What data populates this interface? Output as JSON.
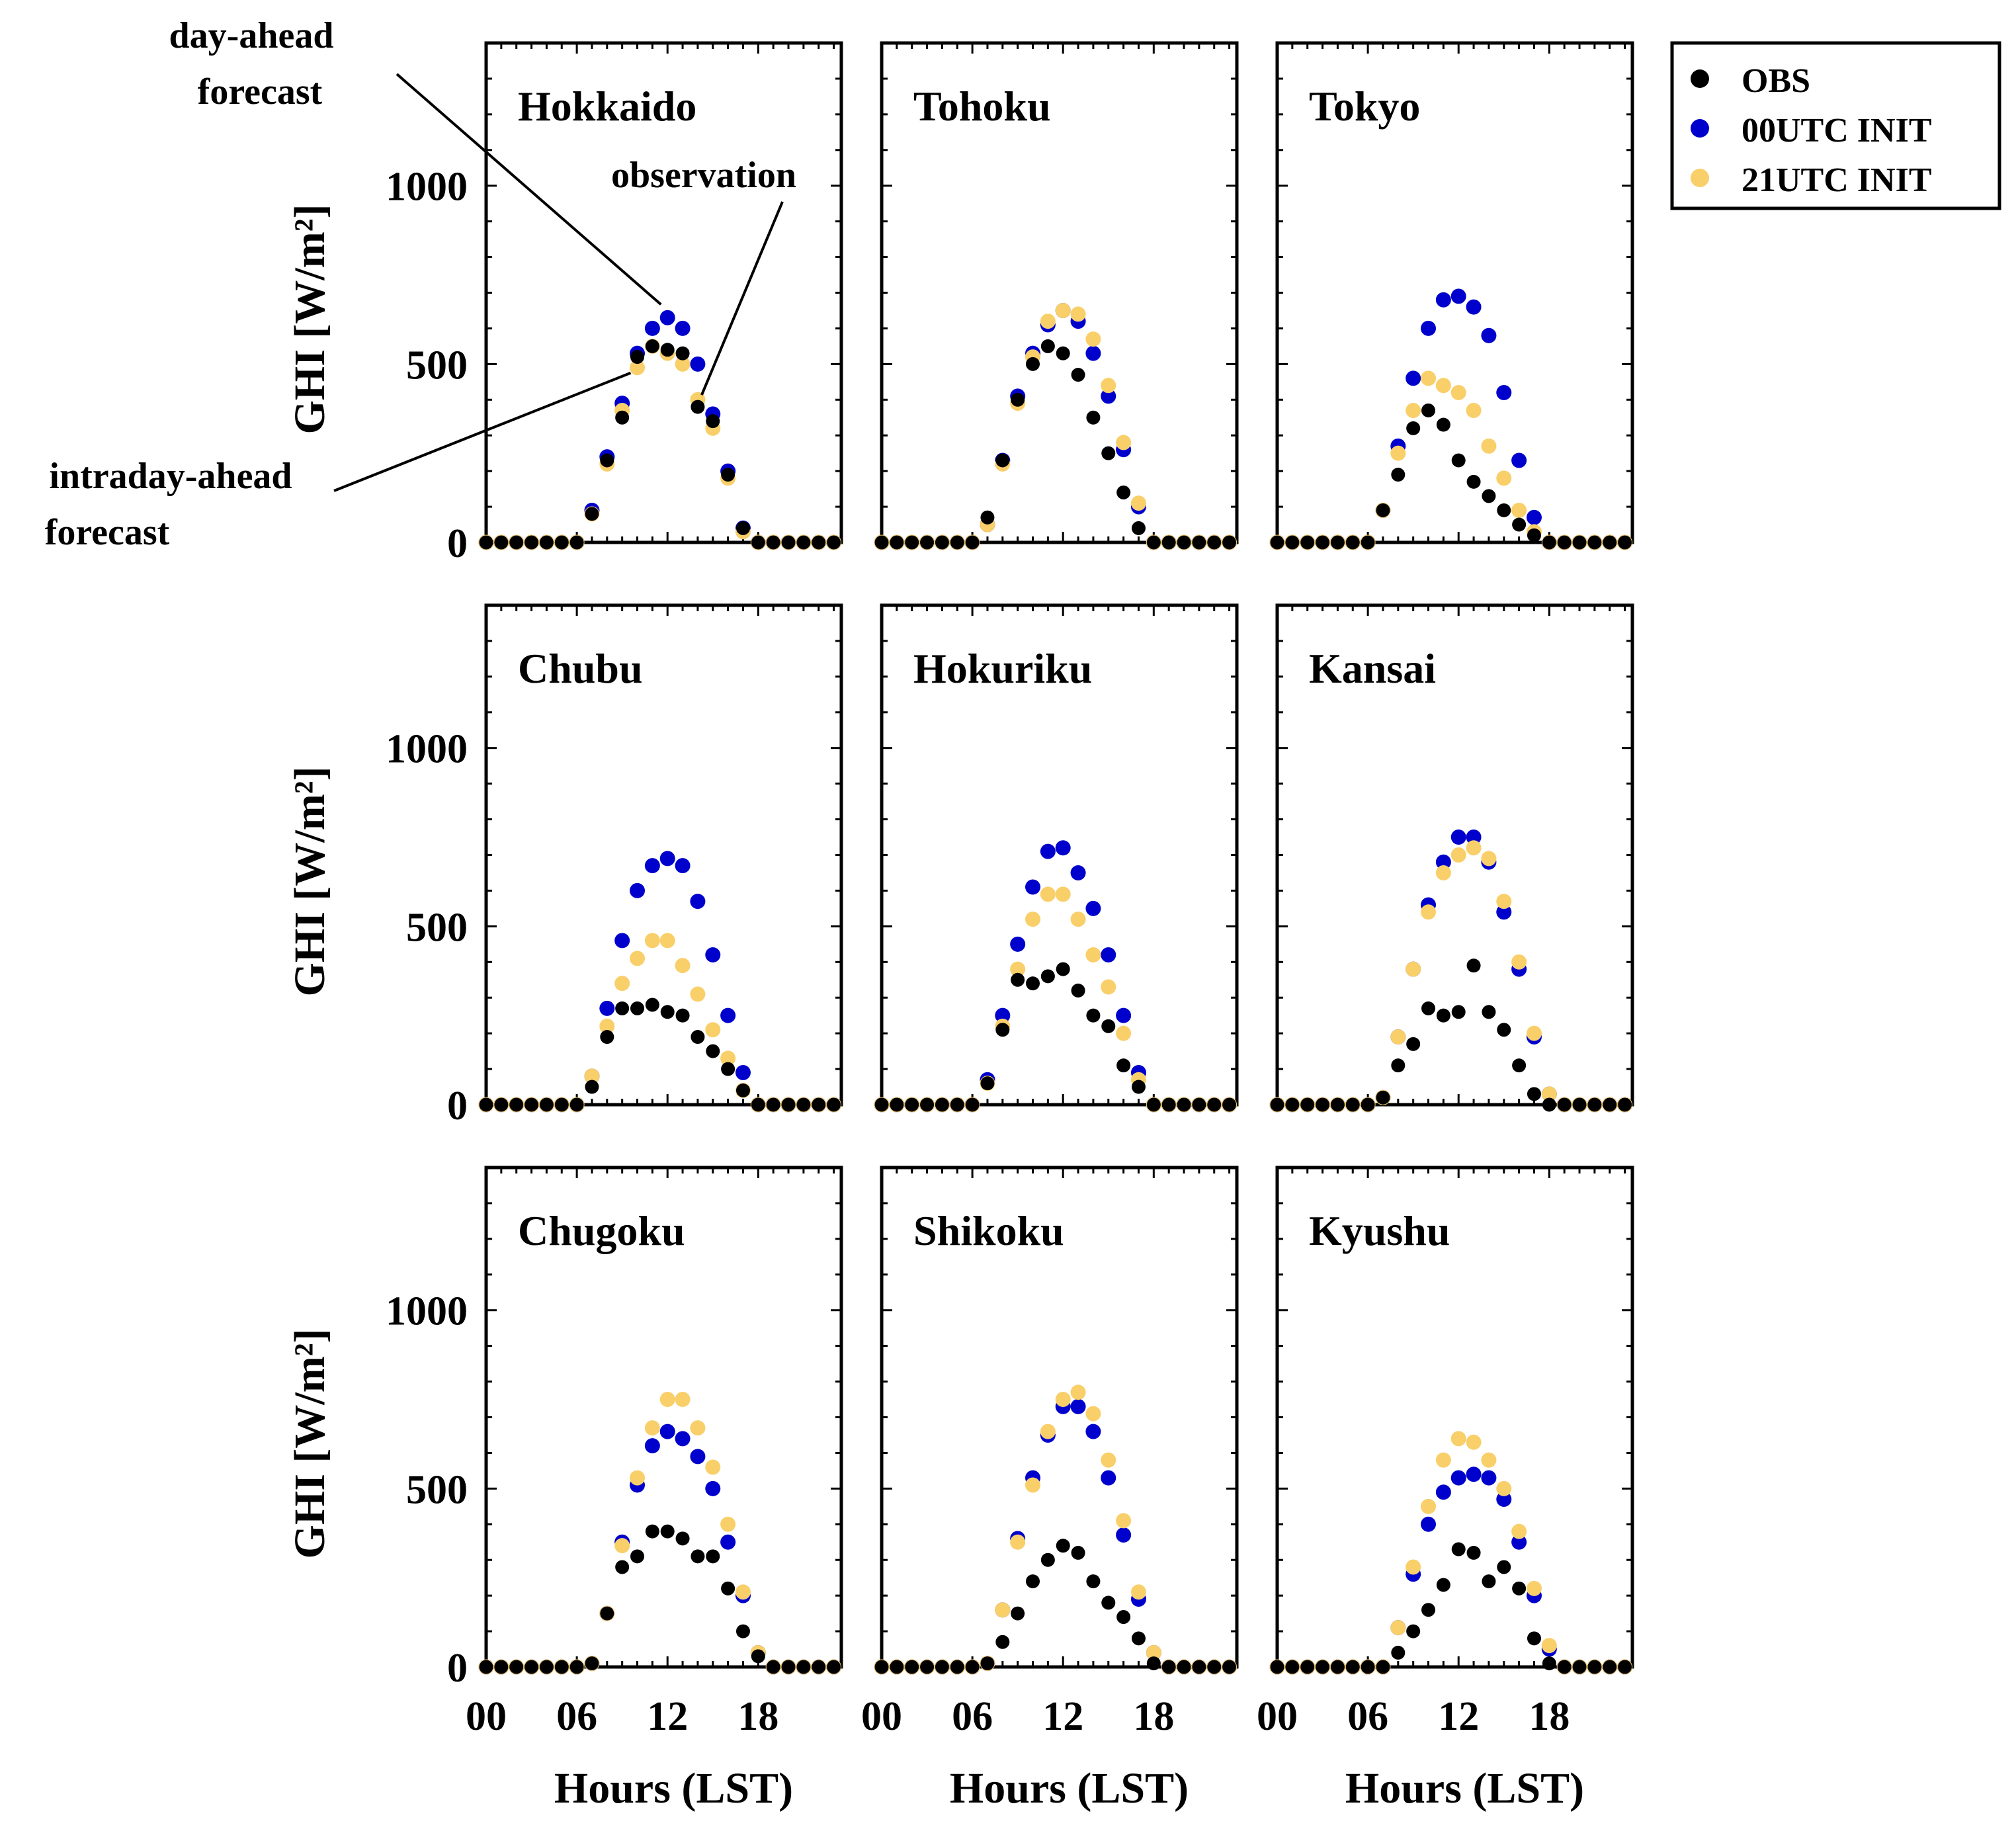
{
  "chart_data": {
    "type": "scatter",
    "layout": "3x3 small multiples",
    "ylabel": "GHI [W/m²]",
    "xlabel": "Hours (LST)",
    "ylim": [
      0,
      1400
    ],
    "xlim": [
      0,
      23.5
    ],
    "yticks": [
      0,
      500,
      1000
    ],
    "ytick_labels": [
      "0",
      "500",
      "1000"
    ],
    "xticks": [
      0,
      6,
      12,
      18
    ],
    "xtick_labels": [
      "00",
      "06",
      "12",
      "18"
    ],
    "hours": [
      0,
      1,
      2,
      3,
      4,
      5,
      6,
      7,
      8,
      9,
      10,
      11,
      12,
      13,
      14,
      15,
      16,
      17,
      18,
      19,
      20,
      21,
      22,
      23
    ],
    "legend": {
      "position": "top-right",
      "entries": [
        {
          "key": "obs",
          "label": "OBS",
          "color": "#000000"
        },
        {
          "key": "init00",
          "label": "00UTC INIT",
          "color": "#0000cc"
        },
        {
          "key": "init21",
          "label": "21UTC INIT",
          "color": "#f9cf6a"
        }
      ]
    },
    "annotations": {
      "day_ahead": [
        "day-ahead",
        "forecast"
      ],
      "observation": "observation",
      "intraday": [
        "intraday-ahead",
        "forecast"
      ]
    },
    "panels": [
      {
        "region": "Hokkaido",
        "obs": [
          0,
          0,
          0,
          0,
          0,
          0,
          0,
          80,
          230,
          350,
          520,
          550,
          540,
          530,
          380,
          340,
          190,
          40,
          0,
          0,
          0,
          0,
          0,
          0
        ],
        "init00": [
          0,
          0,
          0,
          0,
          0,
          0,
          0,
          90,
          240,
          390,
          530,
          600,
          630,
          600,
          500,
          360,
          200,
          40,
          0,
          0,
          0,
          0,
          0,
          0
        ],
        "init21": [
          0,
          0,
          0,
          0,
          0,
          0,
          0,
          80,
          220,
          370,
          490,
          550,
          530,
          500,
          400,
          320,
          180,
          30,
          0,
          0,
          0,
          0,
          0,
          0
        ]
      },
      {
        "region": "Tohoku",
        "obs": [
          0,
          0,
          0,
          0,
          0,
          0,
          0,
          70,
          230,
          400,
          500,
          550,
          530,
          470,
          350,
          250,
          140,
          40,
          0,
          0,
          0,
          0,
          0,
          0
        ],
        "init00": [
          0,
          0,
          0,
          0,
          0,
          0,
          0,
          50,
          230,
          410,
          530,
          610,
          650,
          620,
          530,
          410,
          260,
          100,
          0,
          0,
          0,
          0,
          0,
          0
        ],
        "init21": [
          0,
          0,
          0,
          0,
          0,
          0,
          0,
          50,
          220,
          390,
          520,
          620,
          650,
          640,
          570,
          440,
          280,
          110,
          0,
          0,
          0,
          0,
          0,
          0
        ]
      },
      {
        "region": "Tokyo",
        "obs": [
          0,
          0,
          0,
          0,
          0,
          0,
          0,
          90,
          190,
          320,
          370,
          330,
          230,
          170,
          130,
          90,
          50,
          20,
          0,
          0,
          0,
          0,
          0,
          0
        ],
        "init00": [
          0,
          0,
          0,
          0,
          0,
          0,
          0,
          90,
          270,
          460,
          600,
          680,
          690,
          660,
          580,
          420,
          230,
          70,
          0,
          0,
          0,
          0,
          0,
          0
        ],
        "init21": [
          0,
          0,
          0,
          0,
          0,
          0,
          0,
          90,
          250,
          370,
          460,
          440,
          420,
          370,
          270,
          180,
          90,
          30,
          0,
          0,
          0,
          0,
          0,
          0
        ]
      },
      {
        "region": "Chubu",
        "obs": [
          0,
          0,
          0,
          0,
          0,
          0,
          0,
          50,
          190,
          270,
          270,
          280,
          260,
          250,
          190,
          150,
          100,
          40,
          0,
          0,
          0,
          0,
          0,
          0
        ],
        "init00": [
          0,
          0,
          0,
          0,
          0,
          0,
          0,
          80,
          270,
          460,
          600,
          670,
          690,
          670,
          570,
          420,
          250,
          90,
          0,
          0,
          0,
          0,
          0,
          0
        ],
        "init21": [
          0,
          0,
          0,
          0,
          0,
          0,
          0,
          80,
          220,
          340,
          410,
          460,
          460,
          390,
          310,
          210,
          130,
          40,
          0,
          0,
          0,
          0,
          0,
          0
        ]
      },
      {
        "region": "Hokuriku",
        "obs": [
          0,
          0,
          0,
          0,
          0,
          0,
          0,
          60,
          210,
          350,
          340,
          360,
          380,
          320,
          250,
          220,
          110,
          50,
          0,
          0,
          0,
          0,
          0,
          0
        ],
        "init00": [
          0,
          0,
          0,
          0,
          0,
          0,
          0,
          70,
          250,
          450,
          610,
          710,
          720,
          650,
          550,
          420,
          250,
          90,
          0,
          0,
          0,
          0,
          0,
          0
        ],
        "init21": [
          0,
          0,
          0,
          0,
          0,
          0,
          0,
          60,
          220,
          380,
          520,
          590,
          590,
          520,
          420,
          330,
          200,
          70,
          0,
          0,
          0,
          0,
          0,
          0
        ]
      },
      {
        "region": "Kansai",
        "obs": [
          0,
          0,
          0,
          0,
          0,
          0,
          0,
          20,
          110,
          170,
          270,
          250,
          260,
          390,
          260,
          210,
          110,
          30,
          0,
          0,
          0,
          0,
          0,
          0
        ],
        "init00": [
          0,
          0,
          0,
          0,
          0,
          0,
          0,
          20,
          190,
          380,
          560,
          680,
          750,
          750,
          680,
          540,
          380,
          190,
          30,
          0,
          0,
          0,
          0,
          0
        ],
        "init21": [
          0,
          0,
          0,
          0,
          0,
          0,
          0,
          20,
          190,
          380,
          540,
          650,
          700,
          720,
          690,
          570,
          400,
          200,
          30,
          0,
          0,
          0,
          0,
          0
        ]
      },
      {
        "region": "Chugoku",
        "obs": [
          0,
          0,
          0,
          0,
          0,
          0,
          0,
          10,
          150,
          280,
          310,
          380,
          380,
          360,
          310,
          310,
          220,
          100,
          30,
          0,
          0,
          0,
          0,
          0
        ],
        "init00": [
          0,
          0,
          0,
          0,
          0,
          0,
          0,
          10,
          150,
          350,
          510,
          620,
          660,
          640,
          590,
          500,
          350,
          200,
          40,
          0,
          0,
          0,
          0,
          0
        ],
        "init21": [
          0,
          0,
          0,
          0,
          0,
          0,
          0,
          10,
          150,
          340,
          530,
          670,
          750,
          750,
          670,
          560,
          400,
          210,
          40,
          0,
          0,
          0,
          0,
          0
        ]
      },
      {
        "region": "Shikoku",
        "obs": [
          0,
          0,
          0,
          0,
          0,
          0,
          0,
          10,
          70,
          150,
          240,
          300,
          340,
          320,
          240,
          180,
          140,
          80,
          10,
          0,
          0,
          0,
          0,
          0
        ],
        "init00": [
          0,
          0,
          0,
          0,
          0,
          0,
          0,
          10,
          160,
          360,
          530,
          650,
          730,
          730,
          660,
          530,
          370,
          190,
          40,
          0,
          0,
          0,
          0,
          0
        ],
        "init21": [
          0,
          0,
          0,
          0,
          0,
          0,
          0,
          10,
          160,
          350,
          510,
          660,
          750,
          770,
          710,
          580,
          410,
          210,
          40,
          0,
          0,
          0,
          0,
          0
        ]
      },
      {
        "region": "Kyushu",
        "obs": [
          0,
          0,
          0,
          0,
          0,
          0,
          0,
          0,
          40,
          100,
          160,
          230,
          330,
          320,
          240,
          280,
          220,
          80,
          10,
          0,
          0,
          0,
          0,
          0
        ],
        "init00": [
          0,
          0,
          0,
          0,
          0,
          0,
          0,
          0,
          110,
          260,
          400,
          490,
          530,
          540,
          530,
          470,
          350,
          200,
          50,
          0,
          0,
          0,
          0,
          0
        ],
        "init21": [
          0,
          0,
          0,
          0,
          0,
          0,
          0,
          0,
          110,
          280,
          450,
          580,
          640,
          630,
          580,
          500,
          380,
          220,
          60,
          0,
          0,
          0,
          0,
          0
        ]
      }
    ]
  }
}
